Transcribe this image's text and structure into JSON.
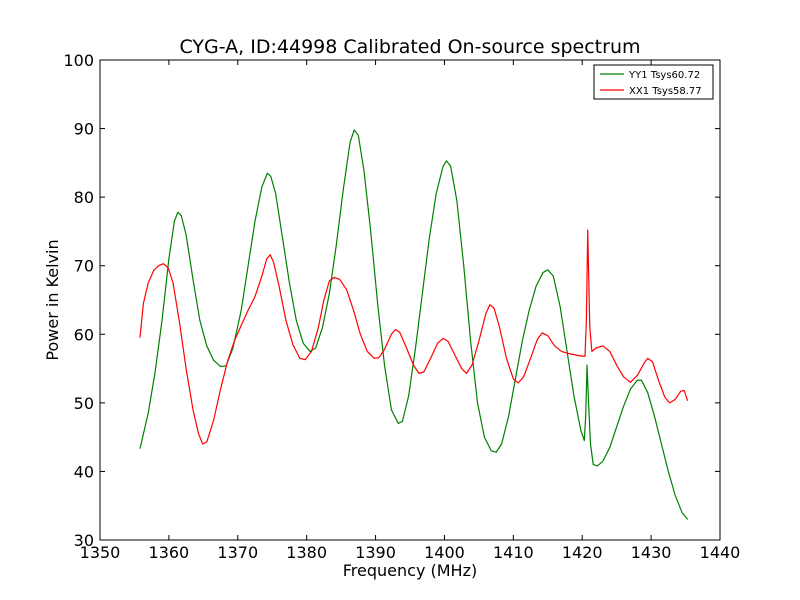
{
  "chart_data": {
    "type": "line",
    "title": "CYG-A, ID:44998 Calibrated On-source spectrum",
    "xlabel": "Frequency (MHz)",
    "ylabel": "Power in Kelvin",
    "xlim": [
      1350,
      1440
    ],
    "ylim": [
      30,
      100
    ],
    "xticks": [
      1350,
      1360,
      1370,
      1380,
      1390,
      1400,
      1410,
      1420,
      1430,
      1440
    ],
    "yticks": [
      30,
      40,
      50,
      60,
      70,
      80,
      90,
      100
    ],
    "xtick_labels": [
      "1350",
      "1360",
      "1370",
      "1380",
      "1390",
      "1400",
      "1410",
      "1420",
      "1430",
      "1440"
    ],
    "ytick_labels": [
      "30",
      "40",
      "50",
      "60",
      "70",
      "80",
      "90",
      "100"
    ],
    "grid": false,
    "legend_position": "top-right",
    "series": [
      {
        "name": "YY1 Tsys60.72",
        "color": "#008000",
        "points": [
          [
            1355.8,
            43.3
          ],
          [
            1357.0,
            48.5
          ],
          [
            1358.0,
            54.5
          ],
          [
            1359.0,
            62.0
          ],
          [
            1360.0,
            71.0
          ],
          [
            1360.8,
            76.5
          ],
          [
            1361.3,
            77.8
          ],
          [
            1361.8,
            77.3
          ],
          [
            1362.5,
            74.5
          ],
          [
            1363.5,
            68.0
          ],
          [
            1364.5,
            62.0
          ],
          [
            1365.5,
            58.3
          ],
          [
            1366.5,
            56.2
          ],
          [
            1367.5,
            55.3
          ],
          [
            1368.3,
            55.4
          ],
          [
            1369.3,
            58.0
          ],
          [
            1370.5,
            63.5
          ],
          [
            1371.5,
            70.0
          ],
          [
            1372.5,
            76.5
          ],
          [
            1373.5,
            81.5
          ],
          [
            1374.3,
            83.5
          ],
          [
            1374.8,
            83.0
          ],
          [
            1375.5,
            80.5
          ],
          [
            1376.5,
            74.0
          ],
          [
            1377.5,
            67.5
          ],
          [
            1378.5,
            62.0
          ],
          [
            1379.5,
            58.7
          ],
          [
            1380.5,
            57.5
          ],
          [
            1381.3,
            58.0
          ],
          [
            1382.3,
            61.0
          ],
          [
            1383.3,
            66.0
          ],
          [
            1384.3,
            73.0
          ],
          [
            1385.3,
            81.0
          ],
          [
            1386.3,
            88.0
          ],
          [
            1386.9,
            89.8
          ],
          [
            1387.5,
            89.0
          ],
          [
            1388.3,
            84.0
          ],
          [
            1389.3,
            75.0
          ],
          [
            1390.3,
            64.5
          ],
          [
            1391.3,
            55.5
          ],
          [
            1392.3,
            49.0
          ],
          [
            1393.3,
            47.0
          ],
          [
            1393.9,
            47.3
          ],
          [
            1394.8,
            51.0
          ],
          [
            1395.8,
            58.0
          ],
          [
            1396.8,
            66.0
          ],
          [
            1397.8,
            74.0
          ],
          [
            1398.8,
            80.5
          ],
          [
            1399.8,
            84.5
          ],
          [
            1400.3,
            85.3
          ],
          [
            1400.9,
            84.5
          ],
          [
            1401.8,
            79.5
          ],
          [
            1402.8,
            70.0
          ],
          [
            1403.8,
            59.0
          ],
          [
            1404.8,
            50.0
          ],
          [
            1405.8,
            45.0
          ],
          [
            1406.8,
            43.0
          ],
          [
            1407.5,
            42.8
          ],
          [
            1408.3,
            44.0
          ],
          [
            1409.3,
            48.0
          ],
          [
            1410.3,
            53.5
          ],
          [
            1411.3,
            59.0
          ],
          [
            1412.3,
            63.5
          ],
          [
            1413.3,
            67.0
          ],
          [
            1414.3,
            69.0
          ],
          [
            1415.0,
            69.4
          ],
          [
            1415.8,
            68.5
          ],
          [
            1416.8,
            64.0
          ],
          [
            1417.8,
            57.5
          ],
          [
            1418.8,
            51.0
          ],
          [
            1419.8,
            46.0
          ],
          [
            1420.3,
            44.5
          ],
          [
            1420.5,
            48.0
          ],
          [
            1420.7,
            55.5
          ],
          [
            1420.9,
            50.5
          ],
          [
            1421.2,
            44.0
          ],
          [
            1421.6,
            41.0
          ],
          [
            1422.2,
            40.8
          ],
          [
            1423.0,
            41.5
          ],
          [
            1424.0,
            43.5
          ],
          [
            1425.0,
            46.5
          ],
          [
            1426.0,
            49.5
          ],
          [
            1427.0,
            52.0
          ],
          [
            1428.0,
            53.3
          ],
          [
            1428.6,
            53.3
          ],
          [
            1429.5,
            51.5
          ],
          [
            1430.5,
            48.0
          ],
          [
            1431.5,
            44.0
          ],
          [
            1432.5,
            40.0
          ],
          [
            1433.5,
            36.5
          ],
          [
            1434.5,
            34.0
          ],
          [
            1435.3,
            33.0
          ]
        ]
      },
      {
        "name": "XX1 Tsys58.77",
        "color": "#ff0000",
        "points": [
          [
            1355.8,
            59.5
          ],
          [
            1356.3,
            64.5
          ],
          [
            1357.0,
            67.5
          ],
          [
            1357.8,
            69.3
          ],
          [
            1358.5,
            70.0
          ],
          [
            1359.2,
            70.3
          ],
          [
            1359.9,
            69.7
          ],
          [
            1360.6,
            67.5
          ],
          [
            1361.5,
            62.0
          ],
          [
            1362.5,
            55.0
          ],
          [
            1363.5,
            49.0
          ],
          [
            1364.3,
            45.5
          ],
          [
            1364.9,
            44.0
          ],
          [
            1365.5,
            44.3
          ],
          [
            1366.5,
            47.5
          ],
          [
            1367.5,
            52.0
          ],
          [
            1368.5,
            56.0
          ],
          [
            1369.5,
            59.0
          ],
          [
            1370.5,
            61.3
          ],
          [
            1371.5,
            63.5
          ],
          [
            1372.5,
            65.5
          ],
          [
            1373.5,
            68.5
          ],
          [
            1374.2,
            71.0
          ],
          [
            1374.7,
            71.6
          ],
          [
            1375.2,
            70.5
          ],
          [
            1376.0,
            67.0
          ],
          [
            1377.0,
            62.0
          ],
          [
            1378.0,
            58.5
          ],
          [
            1379.0,
            56.5
          ],
          [
            1379.8,
            56.3
          ],
          [
            1380.7,
            57.5
          ],
          [
            1381.7,
            61.0
          ],
          [
            1382.5,
            65.0
          ],
          [
            1383.3,
            67.8
          ],
          [
            1384.0,
            68.3
          ],
          [
            1384.8,
            68.0
          ],
          [
            1385.8,
            66.5
          ],
          [
            1386.8,
            63.5
          ],
          [
            1387.8,
            60.0
          ],
          [
            1388.8,
            57.5
          ],
          [
            1389.8,
            56.5
          ],
          [
            1390.5,
            56.6
          ],
          [
            1391.3,
            57.8
          ],
          [
            1392.3,
            60.0
          ],
          [
            1392.9,
            60.7
          ],
          [
            1393.5,
            60.3
          ],
          [
            1394.5,
            58.0
          ],
          [
            1395.5,
            55.5
          ],
          [
            1396.3,
            54.3
          ],
          [
            1397.0,
            54.5
          ],
          [
            1398.0,
            56.5
          ],
          [
            1399.0,
            58.7
          ],
          [
            1399.8,
            59.4
          ],
          [
            1400.5,
            59.0
          ],
          [
            1401.5,
            57.0
          ],
          [
            1402.5,
            55.0
          ],
          [
            1403.2,
            54.3
          ],
          [
            1404.0,
            55.5
          ],
          [
            1405.0,
            59.0
          ],
          [
            1406.0,
            63.0
          ],
          [
            1406.6,
            64.3
          ],
          [
            1407.2,
            63.8
          ],
          [
            1408.0,
            61.0
          ],
          [
            1409.0,
            56.5
          ],
          [
            1410.0,
            53.5
          ],
          [
            1410.7,
            52.9
          ],
          [
            1411.5,
            53.8
          ],
          [
            1412.5,
            56.5
          ],
          [
            1413.5,
            59.3
          ],
          [
            1414.2,
            60.2
          ],
          [
            1415.0,
            59.8
          ],
          [
            1416.0,
            58.3
          ],
          [
            1417.0,
            57.5
          ],
          [
            1418.0,
            57.2
          ],
          [
            1419.0,
            57.0
          ],
          [
            1420.0,
            56.8
          ],
          [
            1420.4,
            56.8
          ],
          [
            1420.6,
            62.0
          ],
          [
            1420.8,
            75.2
          ],
          [
            1421.1,
            61.0
          ],
          [
            1421.4,
            57.5
          ],
          [
            1422.0,
            58.0
          ],
          [
            1423.0,
            58.3
          ],
          [
            1424.0,
            57.5
          ],
          [
            1425.0,
            55.5
          ],
          [
            1426.0,
            53.8
          ],
          [
            1427.0,
            53.0
          ],
          [
            1428.0,
            54.0
          ],
          [
            1429.0,
            55.8
          ],
          [
            1429.5,
            56.5
          ],
          [
            1430.2,
            56.0
          ],
          [
            1431.0,
            53.5
          ],
          [
            1432.0,
            50.8
          ],
          [
            1432.7,
            50.0
          ],
          [
            1433.5,
            50.5
          ],
          [
            1434.3,
            51.7
          ],
          [
            1434.8,
            51.8
          ],
          [
            1435.3,
            50.3
          ]
        ]
      }
    ]
  }
}
